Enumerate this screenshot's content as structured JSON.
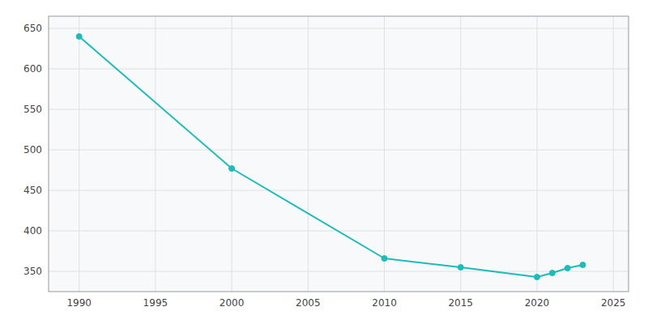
{
  "chart_data": {
    "type": "line",
    "x": [
      1990,
      2000,
      2010,
      2015,
      2020,
      2021,
      2022,
      2023
    ],
    "values": [
      640,
      477,
      366,
      355,
      343,
      348,
      354,
      358
    ],
    "color": "#1ABCBC",
    "marker": "circle",
    "xlim": [
      1988,
      2026
    ],
    "ylim": [
      325,
      665
    ],
    "xticks": [
      1990,
      1995,
      2000,
      2005,
      2010,
      2015,
      2020,
      2025
    ],
    "yticks": [
      350,
      400,
      450,
      500,
      550,
      600,
      650
    ],
    "grid": true
  }
}
